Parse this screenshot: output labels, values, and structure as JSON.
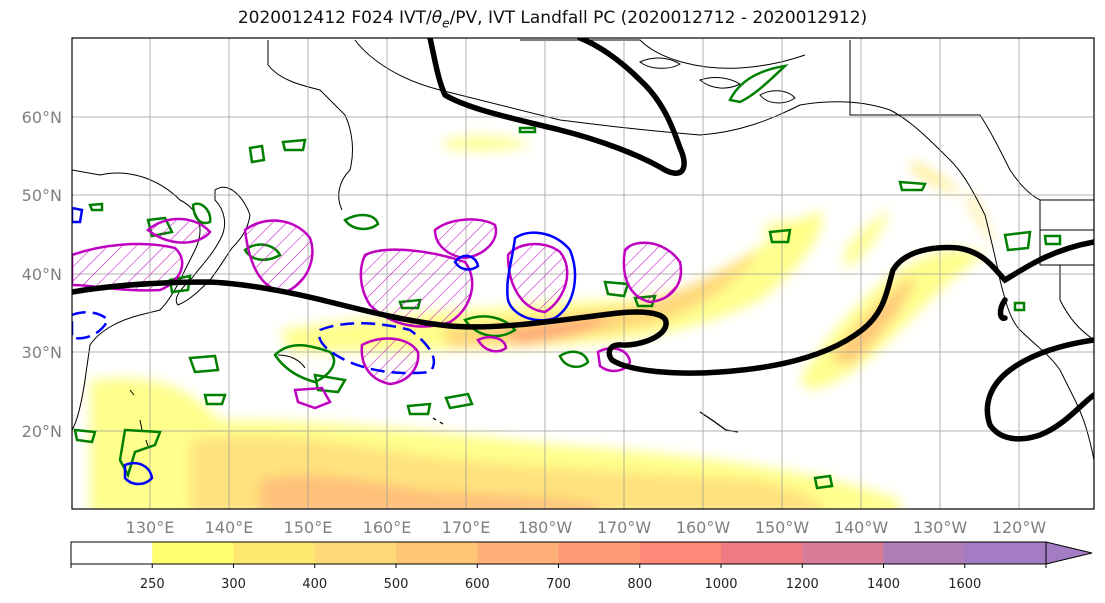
{
  "title": {
    "main": "2020012412 F024 IVT/",
    "theta_symbol": "θ",
    "theta_sub": "e",
    "rest": "/PV, IVT Landfall PC (2020012712 - 2020012912)"
  },
  "map": {
    "lon_labels": [
      "130°E",
      "140°E",
      "150°E",
      "160°E",
      "170°E",
      "180°W",
      "170°W",
      "160°W",
      "150°W",
      "140°W",
      "130°W",
      "120°W"
    ],
    "lat_labels": [
      "60°N",
      "50°N",
      "40°N",
      "30°N",
      "20°N"
    ],
    "colors": {
      "land_outline": "#000000",
      "ivt_pc_contour": "#000000",
      "theta_e_contour": "#008000",
      "pv_positive": "#c000c0",
      "pv_negative": "#0000ff"
    }
  },
  "colorbar": {
    "ticks": [
      "250",
      "300",
      "400",
      "500",
      "600",
      "700",
      "800",
      "1000",
      "1200",
      "1400",
      "1600"
    ],
    "colors": [
      "#ffffff",
      "#ffff70",
      "#ffe870",
      "#ffd878",
      "#ffc678",
      "#ffb078",
      "#ff9a78",
      "#ff8878",
      "#ee7a84",
      "#d87c98",
      "#b07cb8",
      "#a47cc4"
    ]
  }
}
